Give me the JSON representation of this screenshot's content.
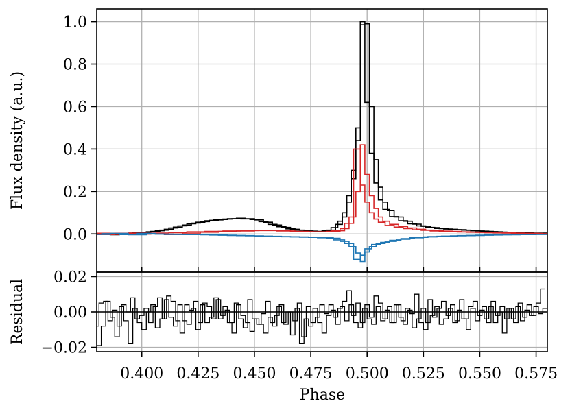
{
  "chart_data": [
    {
      "type": "line",
      "drawstyle": "steps",
      "panel": "main",
      "xlabel": "",
      "ylabel": "Flux density (a.u.)",
      "xlim": [
        0.38,
        0.58
      ],
      "ylim": [
        -0.18,
        1.06
      ],
      "yticks": [
        0.0,
        0.2,
        0.4,
        0.6,
        0.8,
        1.0
      ],
      "ytick_labels": [
        "0.0",
        "0.2",
        "0.4",
        "0.6",
        "0.8",
        "1.0"
      ],
      "grid": true,
      "series": [
        {
          "color": "#000000",
          "x": [
            0.382,
            0.386,
            0.39,
            0.394,
            0.398,
            0.402,
            0.406,
            0.41,
            0.414,
            0.418,
            0.422,
            0.426,
            0.43,
            0.434,
            0.438,
            0.442,
            0.446,
            0.45,
            0.454,
            0.458,
            0.462,
            0.466,
            0.47,
            0.474,
            0.478,
            0.482,
            0.486,
            0.488,
            0.49,
            0.492,
            0.494,
            0.496,
            0.498,
            0.5,
            0.502,
            0.504,
            0.506,
            0.508,
            0.51,
            0.514,
            0.518,
            0.522,
            0.526,
            0.53,
            0.534,
            0.538,
            0.542,
            0.546,
            0.55,
            0.554,
            0.558,
            0.562,
            0.566,
            0.57,
            0.574,
            0.578
          ],
          "y": [
            0.003,
            0.002,
            -0.003,
            0.001,
            0.005,
            0.008,
            0.012,
            0.018,
            0.028,
            0.038,
            0.048,
            0.055,
            0.062,
            0.066,
            0.07,
            0.072,
            0.071,
            0.068,
            0.058,
            0.045,
            0.034,
            0.024,
            0.018,
            0.014,
            0.012,
            0.015,
            0.03,
            0.06,
            0.1,
            0.18,
            0.3,
            0.5,
            1.0,
            0.99,
            0.6,
            0.35,
            0.22,
            0.15,
            0.11,
            0.08,
            0.06,
            0.046,
            0.036,
            0.03,
            0.025,
            0.022,
            0.02,
            0.017,
            0.014,
            0.012,
            0.01,
            0.008,
            0.006,
            0.005,
            0.004,
            0.004
          ]
        },
        {
          "color": "#000000",
          "x": [
            0.384,
            0.388,
            0.392,
            0.396,
            0.4,
            0.404,
            0.408,
            0.412,
            0.416,
            0.42,
            0.424,
            0.428,
            0.432,
            0.436,
            0.44,
            0.444,
            0.448,
            0.452,
            0.456,
            0.46,
            0.464,
            0.468,
            0.472,
            0.476,
            0.48,
            0.484,
            0.488,
            0.49,
            0.492,
            0.494,
            0.496,
            0.498,
            0.5,
            0.502,
            0.504,
            0.506,
            0.508,
            0.512,
            0.516,
            0.52,
            0.524,
            0.528,
            0.532,
            0.536,
            0.54,
            0.544,
            0.548,
            0.552,
            0.556,
            0.56,
            0.564,
            0.568,
            0.572,
            0.576
          ],
          "y": [
            0.0,
            -0.004,
            0.002,
            0.004,
            0.006,
            0.01,
            0.015,
            0.022,
            0.032,
            0.042,
            0.051,
            0.058,
            0.064,
            0.068,
            0.072,
            0.074,
            0.072,
            0.066,
            0.055,
            0.042,
            0.031,
            0.022,
            0.017,
            0.013,
            0.011,
            0.018,
            0.045,
            0.08,
            0.15,
            0.26,
            0.44,
            0.985,
            0.62,
            0.38,
            0.24,
            0.16,
            0.115,
            0.082,
            0.062,
            0.048,
            0.038,
            0.031,
            0.026,
            0.023,
            0.02,
            0.018,
            0.015,
            0.013,
            0.011,
            0.009,
            0.007,
            0.005,
            0.005,
            0.003
          ]
        },
        {
          "color": "#d62728",
          "x": [
            0.382,
            0.39,
            0.398,
            0.406,
            0.414,
            0.422,
            0.43,
            0.438,
            0.446,
            0.454,
            0.462,
            0.47,
            0.478,
            0.486,
            0.49,
            0.494,
            0.496,
            0.498,
            0.5,
            0.502,
            0.504,
            0.506,
            0.508,
            0.512,
            0.516,
            0.52,
            0.524,
            0.528,
            0.532,
            0.536,
            0.54,
            0.544,
            0.548,
            0.552,
            0.556,
            0.56,
            0.564,
            0.568,
            0.572,
            0.576
          ],
          "y": [
            0.003,
            -0.002,
            0.004,
            0.002,
            -0.003,
            0.004,
            0.008,
            0.012,
            0.014,
            0.016,
            0.016,
            0.012,
            0.01,
            0.012,
            0.025,
            0.08,
            0.2,
            0.42,
            0.28,
            0.18,
            0.12,
            0.08,
            0.06,
            0.045,
            0.035,
            0.028,
            0.022,
            0.018,
            0.015,
            0.013,
            0.012,
            0.01,
            0.009,
            0.008,
            0.007,
            0.006,
            0.005,
            0.004,
            0.003,
            0.002
          ]
        },
        {
          "color": "#d62728",
          "x": [
            0.384,
            0.392,
            0.4,
            0.408,
            0.416,
            0.424,
            0.432,
            0.44,
            0.448,
            0.456,
            0.464,
            0.472,
            0.48,
            0.488,
            0.492,
            0.496,
            0.498,
            0.5,
            0.502,
            0.504,
            0.506,
            0.51,
            0.514,
            0.518,
            0.522,
            0.526,
            0.53,
            0.534,
            0.538,
            0.542,
            0.546,
            0.55,
            0.554,
            0.558,
            0.562,
            0.566,
            0.57,
            0.574,
            0.578
          ],
          "y": [
            -0.003,
            0.003,
            -0.001,
            0.004,
            0.006,
            0.01,
            0.012,
            0.014,
            0.016,
            0.017,
            0.014,
            0.011,
            0.01,
            0.015,
            0.05,
            0.4,
            0.23,
            0.15,
            0.1,
            0.07,
            0.055,
            0.04,
            0.032,
            0.025,
            0.02,
            0.017,
            0.014,
            0.012,
            0.01,
            0.009,
            0.008,
            0.007,
            0.006,
            0.005,
            0.004,
            0.003,
            0.002,
            0.002,
            0.001
          ]
        },
        {
          "color": "#1f77b4",
          "x": [
            0.382,
            0.39,
            0.398,
            0.406,
            0.414,
            0.422,
            0.43,
            0.438,
            0.446,
            0.454,
            0.462,
            0.47,
            0.478,
            0.486,
            0.49,
            0.494,
            0.496,
            0.498,
            0.5,
            0.502,
            0.506,
            0.51,
            0.516,
            0.522,
            0.528,
            0.534,
            0.54,
            0.548,
            0.556,
            0.564,
            0.572,
            0.578
          ],
          "y": [
            -0.002,
            0.002,
            -0.004,
            0.0,
            -0.002,
            -0.003,
            -0.004,
            -0.006,
            -0.008,
            -0.01,
            -0.012,
            -0.014,
            -0.016,
            -0.02,
            -0.035,
            -0.06,
            -0.09,
            -0.13,
            -0.085,
            -0.06,
            -0.045,
            -0.035,
            -0.025,
            -0.018,
            -0.014,
            -0.011,
            -0.009,
            -0.007,
            -0.005,
            -0.004,
            -0.003,
            -0.002
          ]
        },
        {
          "color": "#1f77b4",
          "x": [
            0.386,
            0.394,
            0.402,
            0.41,
            0.418,
            0.426,
            0.434,
            0.442,
            0.45,
            0.458,
            0.466,
            0.474,
            0.482,
            0.488,
            0.492,
            0.496,
            0.498,
            0.5,
            0.504,
            0.508,
            0.512,
            0.518,
            0.524,
            0.53,
            0.536,
            0.544,
            0.552,
            0.56,
            0.568,
            0.576
          ],
          "y": [
            0.001,
            -0.003,
            0.002,
            -0.001,
            -0.002,
            -0.003,
            -0.005,
            -0.007,
            -0.009,
            -0.011,
            -0.013,
            -0.015,
            -0.018,
            -0.028,
            -0.045,
            -0.12,
            -0.1,
            -0.07,
            -0.05,
            -0.04,
            -0.03,
            -0.022,
            -0.016,
            -0.012,
            -0.01,
            -0.008,
            -0.006,
            -0.004,
            -0.003,
            -0.002
          ]
        }
      ]
    },
    {
      "type": "line",
      "drawstyle": "steps",
      "panel": "residual",
      "xlabel": "Phase",
      "ylabel": "Residual",
      "xlim": [
        0.38,
        0.58
      ],
      "ylim": [
        -0.0225,
        0.0225
      ],
      "yticks": [
        -0.02,
        0.0,
        0.02
      ],
      "ytick_labels": [
        "−0.02",
        "0.00",
        "0.02"
      ],
      "xticks": [
        0.4,
        0.425,
        0.45,
        0.475,
        0.5,
        0.525,
        0.55,
        0.575
      ],
      "xtick_labels": [
        "0.400",
        "0.425",
        "0.450",
        "0.475",
        "0.500",
        "0.525",
        "0.550",
        "0.575"
      ],
      "grid": true,
      "zero_line": true,
      "series": [
        {
          "color": "#000000",
          "x": [
            0.38,
            0.382,
            0.384,
            0.386,
            0.388,
            0.39,
            0.392,
            0.394,
            0.396,
            0.398,
            0.4,
            0.402,
            0.404,
            0.406,
            0.408,
            0.41,
            0.412,
            0.414,
            0.416,
            0.418,
            0.42,
            0.422,
            0.424,
            0.426,
            0.428,
            0.43,
            0.432,
            0.434,
            0.436,
            0.438,
            0.44,
            0.442,
            0.444,
            0.446,
            0.448,
            0.45,
            0.452,
            0.454,
            0.456,
            0.458,
            0.46,
            0.462,
            0.464,
            0.466,
            0.468,
            0.47,
            0.472,
            0.474,
            0.476,
            0.478,
            0.48,
            0.482,
            0.484,
            0.486,
            0.488,
            0.49,
            0.492,
            0.494,
            0.496,
            0.498,
            0.5,
            0.502,
            0.504,
            0.506,
            0.508,
            0.51,
            0.512,
            0.514,
            0.516,
            0.518,
            0.52,
            0.522,
            0.524,
            0.526,
            0.528,
            0.53,
            0.532,
            0.534,
            0.536,
            0.538,
            0.54,
            0.542,
            0.544,
            0.546,
            0.548,
            0.55,
            0.552,
            0.554,
            0.556,
            0.558,
            0.56,
            0.562,
            0.564,
            0.566,
            0.568,
            0.57,
            0.572,
            0.574,
            0.576,
            0.578
          ],
          "y": [
            -0.008,
            0.005,
            0.006,
            -0.005,
            0.001,
            -0.008,
            0.004,
            0.0,
            0.008,
            -0.004,
            -0.002,
            0.002,
            -0.006,
            0.003,
            0.008,
            -0.004,
            0.009,
            0.006,
            -0.005,
            -0.012,
            0.004,
            0.001,
            0.006,
            -0.006,
            0.005,
            0.003,
            -0.004,
            0.007,
            -0.002,
            0.001,
            -0.006,
            0.005,
            -0.004,
            -0.009,
            0.007,
            -0.004,
            -0.007,
            -0.001,
            0.006,
            -0.006,
            -0.002,
            0.004,
            -0.007,
            0.0,
            -0.005,
            0.005,
            -0.014,
            0.003,
            -0.006,
            -0.003,
            0.004,
            -0.001,
            0.004,
            -0.003,
            0.002,
            0.006,
            0.012,
            -0.002,
            0.005,
            -0.006,
            0.004,
            -0.003,
            0.009,
            0.005,
            -0.004,
            0.003,
            -0.006,
            0.004,
            -0.005,
            0.002,
            -0.001,
            0.01,
            -0.006,
            -0.01,
            0.007,
            -0.003,
            0.002,
            0.006,
            -0.002,
            0.004,
            -0.005,
            0.007,
            -0.004,
            0.003,
            0.006,
            -0.002,
            0.003,
            -0.006,
            0.006,
            -0.002,
            0.003,
            -0.004,
            0.002,
            -0.006,
            0.005,
            -0.003,
            0.004,
            -0.002,
            0.005,
            0.013
          ]
        },
        {
          "color": "#000000",
          "x": [
            0.381,
            0.383,
            0.385,
            0.387,
            0.389,
            0.391,
            0.393,
            0.395,
            0.397,
            0.399,
            0.401,
            0.403,
            0.405,
            0.407,
            0.409,
            0.411,
            0.413,
            0.415,
            0.417,
            0.419,
            0.421,
            0.423,
            0.425,
            0.427,
            0.429,
            0.431,
            0.433,
            0.435,
            0.437,
            0.439,
            0.441,
            0.443,
            0.445,
            0.447,
            0.449,
            0.451,
            0.453,
            0.455,
            0.457,
            0.459,
            0.461,
            0.463,
            0.465,
            0.467,
            0.469,
            0.471,
            0.473,
            0.475,
            0.477,
            0.479,
            0.481,
            0.483,
            0.485,
            0.487,
            0.489,
            0.491,
            0.493,
            0.495,
            0.497,
            0.499,
            0.501,
            0.503,
            0.505,
            0.507,
            0.509,
            0.511,
            0.513,
            0.515,
            0.517,
            0.519,
            0.521,
            0.523,
            0.525,
            0.527,
            0.529,
            0.531,
            0.533,
            0.535,
            0.537,
            0.539,
            0.541,
            0.543,
            0.545,
            0.547,
            0.549,
            0.551,
            0.553,
            0.555,
            0.557,
            0.559,
            0.561,
            0.563,
            0.565,
            0.567,
            0.569,
            0.571,
            0.573,
            0.575,
            0.577,
            0.579
          ],
          "y": [
            -0.019,
            -0.008,
            0.006,
            -0.003,
            -0.014,
            0.003,
            -0.005,
            -0.018,
            0.002,
            -0.006,
            -0.01,
            0.0,
            0.004,
            -0.009,
            -0.004,
            0.007,
            -0.003,
            -0.008,
            0.004,
            -0.005,
            -0.007,
            0.002,
            -0.01,
            0.004,
            -0.006,
            -0.003,
            0.008,
            -0.004,
            0.003,
            -0.006,
            -0.012,
            0.004,
            -0.002,
            -0.006,
            -0.011,
            -0.004,
            -0.007,
            -0.012,
            -0.003,
            -0.008,
            0.003,
            -0.006,
            0.0,
            -0.013,
            0.002,
            -0.018,
            -0.004,
            -0.008,
            0.002,
            -0.006,
            -0.012,
            -0.002,
            0.001,
            -0.007,
            0.003,
            -0.005,
            0.004,
            -0.006,
            -0.009,
            0.002,
            -0.004,
            -0.007,
            0.003,
            -0.005,
            0.001,
            -0.006,
            0.004,
            -0.003,
            -0.007,
            0.001,
            -0.009,
            -0.004,
            0.002,
            -0.006,
            -0.002,
            0.003,
            -0.007,
            -0.004,
            0.002,
            -0.006,
            0.001,
            -0.004,
            -0.01,
            0.002,
            -0.005,
            0.001,
            -0.004,
            0.003,
            -0.006,
            0.0,
            -0.012,
            0.002,
            -0.004,
            0.003,
            -0.005,
            0.001,
            -0.002,
            0.003,
            -0.001,
            0.002
          ]
        }
      ]
    }
  ]
}
